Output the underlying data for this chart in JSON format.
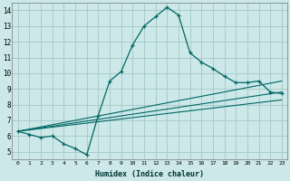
{
  "xlabel": "Humidex (Indice chaleur)",
  "background_color": "#cce8e8",
  "grid_color": "#aacccc",
  "line_color": "#006666",
  "xlim": [
    -0.5,
    23.5
  ],
  "ylim": [
    4.5,
    14.5
  ],
  "xtick_vals": [
    0,
    1,
    2,
    3,
    4,
    5,
    6,
    7,
    8,
    9,
    10,
    11,
    12,
    13,
    14,
    15,
    16,
    17,
    18,
    19,
    20,
    21,
    22,
    23
  ],
  "xtick_labels": [
    "0",
    "1",
    "2",
    "3",
    "4",
    "5",
    "6",
    "7",
    "8",
    "9",
    "10",
    "11",
    "12",
    "13",
    "14",
    "15",
    "16",
    "17",
    "18",
    "19",
    "20",
    "21",
    "22",
    "23"
  ],
  "ytick_vals": [
    5,
    6,
    7,
    8,
    9,
    10,
    11,
    12,
    13,
    14
  ],
  "ytick_labels": [
    "5",
    "6",
    "7",
    "8",
    "9",
    "10",
    "11",
    "12",
    "13",
    "14"
  ],
  "main_series": {
    "x": [
      0,
      1,
      2,
      3,
      4,
      5,
      6,
      7,
      8,
      9,
      10,
      11,
      12,
      13,
      14,
      15,
      16,
      17,
      18,
      19,
      20,
      21,
      22,
      23
    ],
    "y": [
      6.3,
      6.1,
      5.9,
      6.0,
      5.5,
      5.2,
      4.8,
      7.3,
      9.5,
      10.1,
      11.8,
      13.0,
      13.6,
      14.2,
      13.7,
      11.3,
      10.7,
      10.3,
      9.8,
      9.4,
      9.4,
      9.5,
      8.8,
      8.7
    ]
  },
  "straight_lines": [
    {
      "x": [
        0,
        23
      ],
      "y": [
        6.3,
        9.5
      ]
    },
    {
      "x": [
        0,
        23
      ],
      "y": [
        6.3,
        8.8
      ]
    },
    {
      "x": [
        0,
        23
      ],
      "y": [
        6.3,
        8.3
      ]
    }
  ]
}
